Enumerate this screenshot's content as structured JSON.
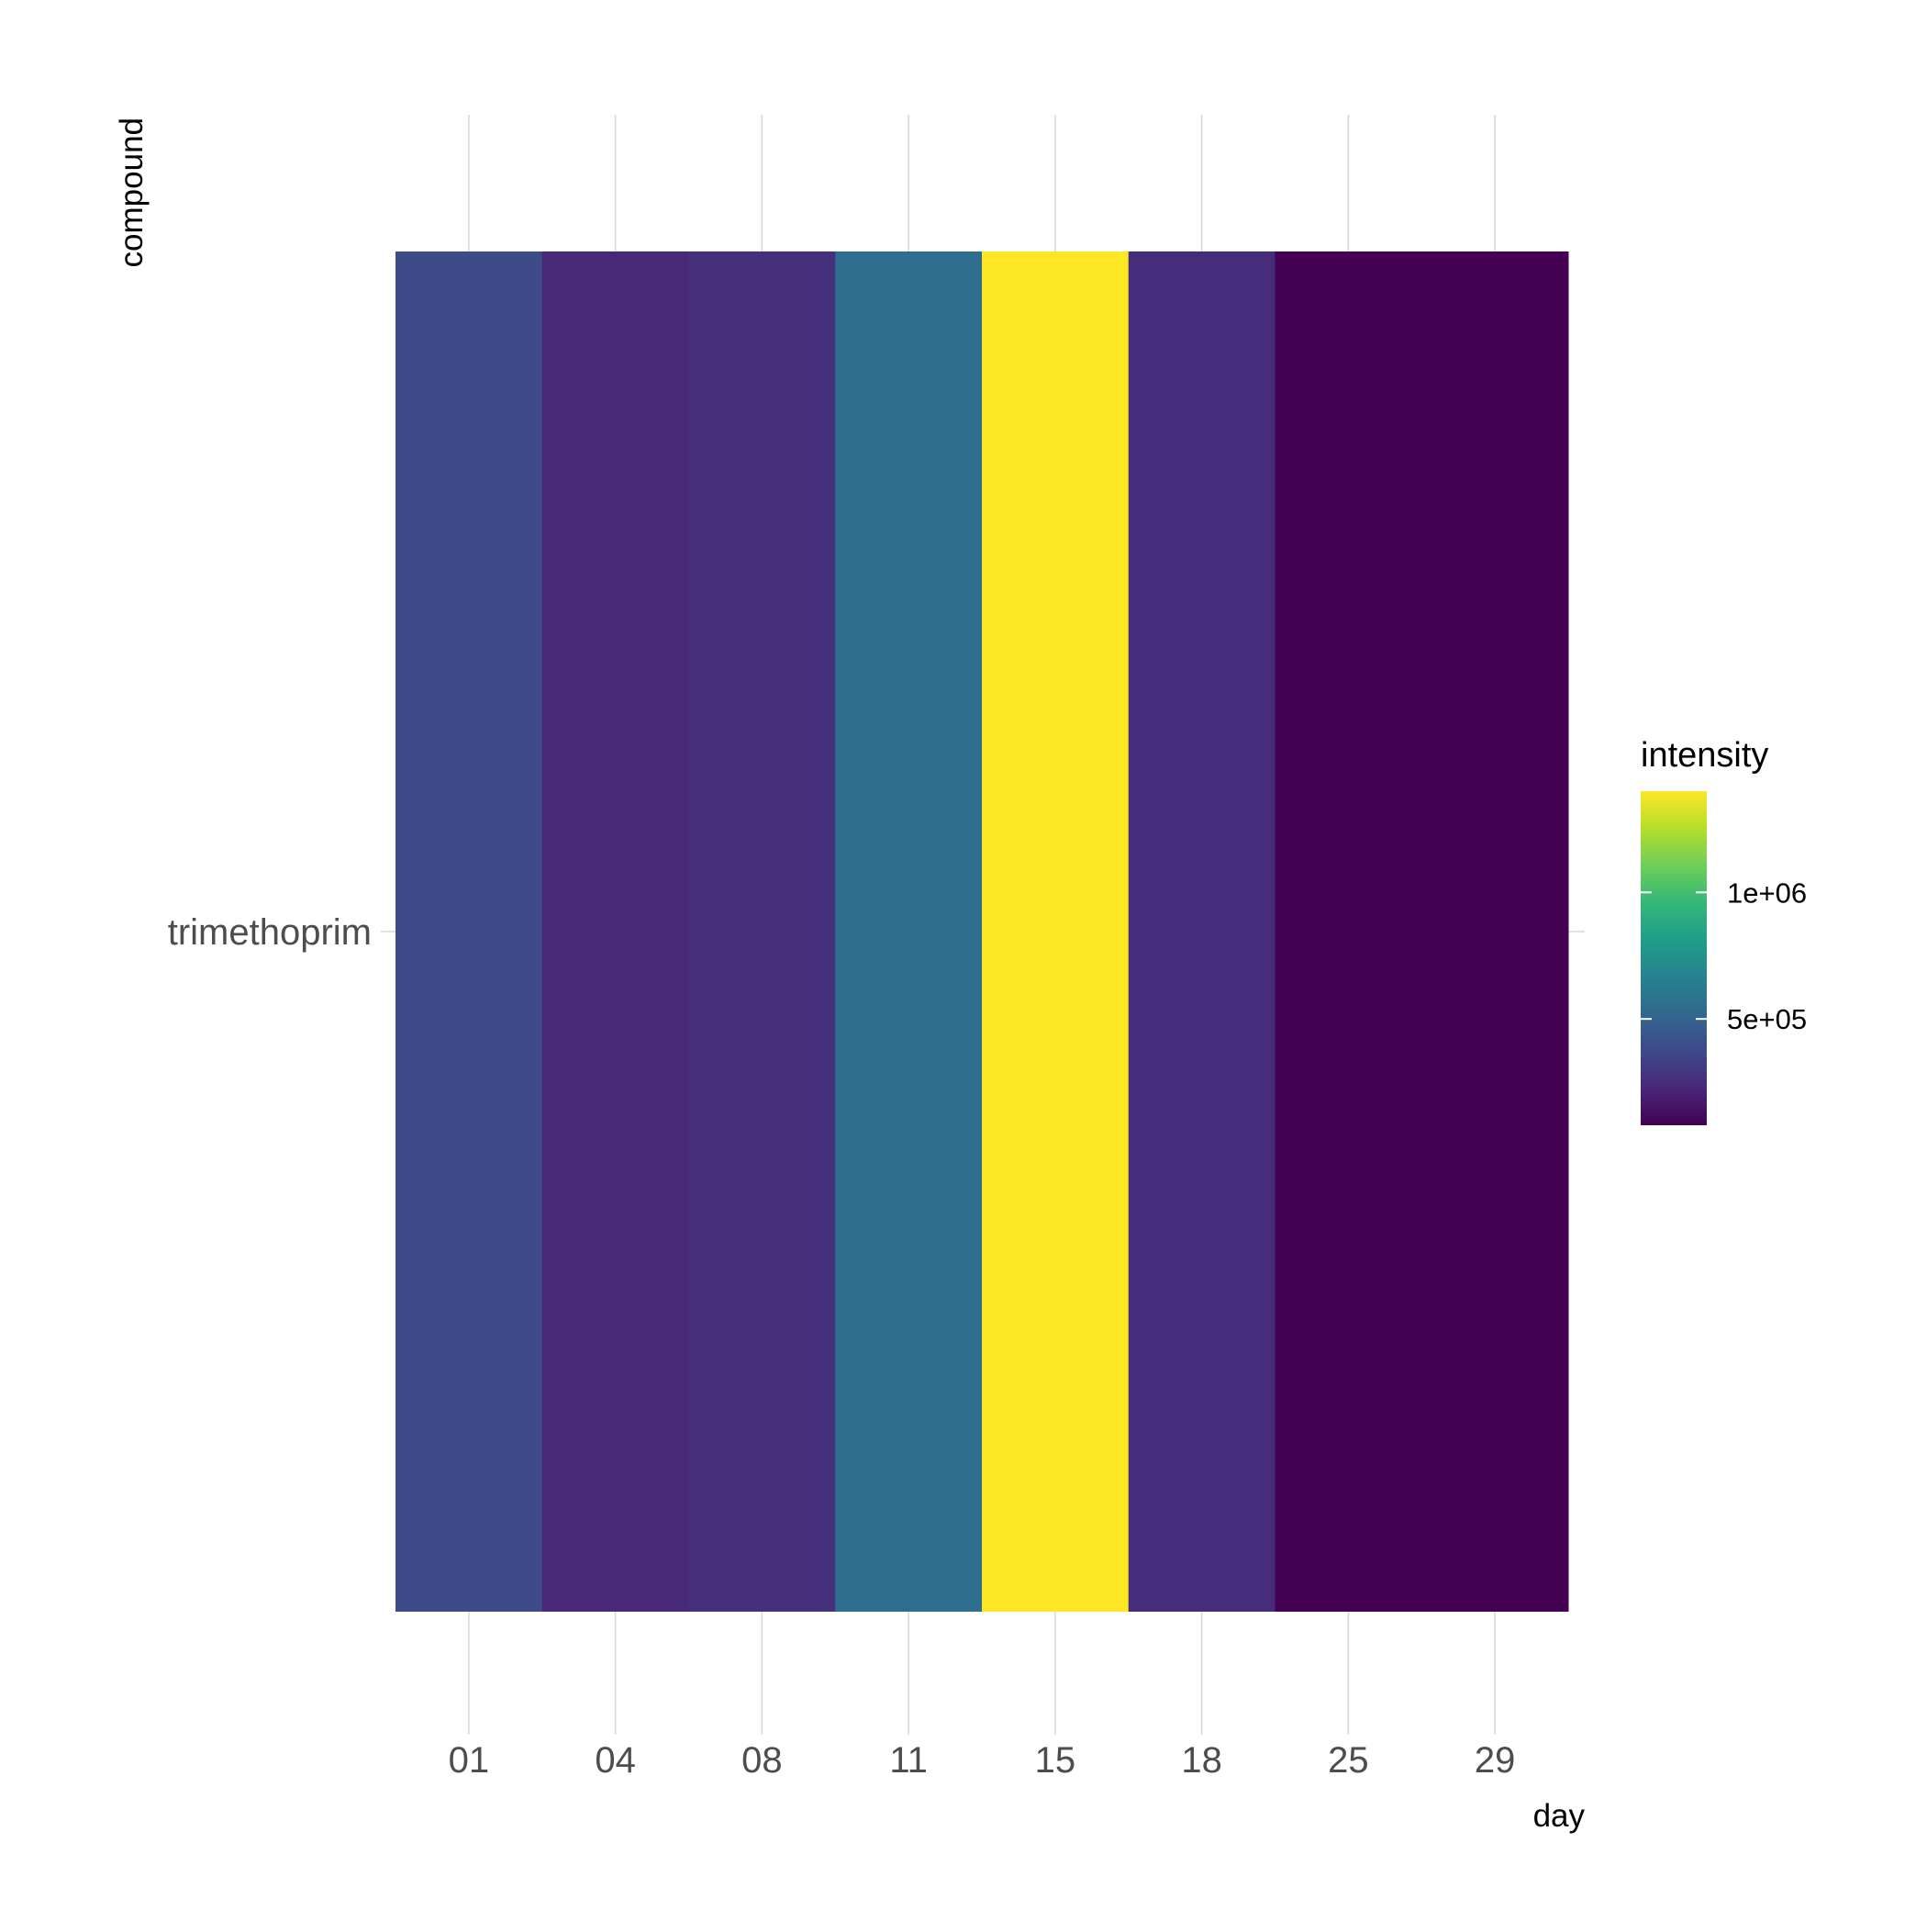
{
  "chart_data": {
    "type": "heatmap",
    "xlabel": "day",
    "ylabel": "compound",
    "x_categories": [
      "01",
      "04",
      "08",
      "11",
      "15",
      "18",
      "25",
      "29"
    ],
    "y_categories": [
      "trimethoprim"
    ],
    "values": [
      [
        380000,
        230000,
        260000,
        550000,
        1400000,
        250000,
        80000,
        75000
      ]
    ],
    "colorbar": {
      "title": "intensity",
      "scale": "viridis",
      "range": [
        80000,
        1400000
      ],
      "ticks": [
        500000,
        1000000
      ],
      "tick_labels": [
        "5e+05",
        "1e+06"
      ],
      "placement": "right"
    },
    "grid": true,
    "colors": {
      "viridis_stops": [
        "#440154",
        "#482878",
        "#3e4a89",
        "#31688e",
        "#26828e",
        "#1f9e89",
        "#35b779",
        "#6ece58",
        "#b5de2b",
        "#fde725"
      ],
      "grid_line": "#d9d9d9",
      "tick_label": "#4d4d4d",
      "axis_title": "#000000"
    }
  }
}
